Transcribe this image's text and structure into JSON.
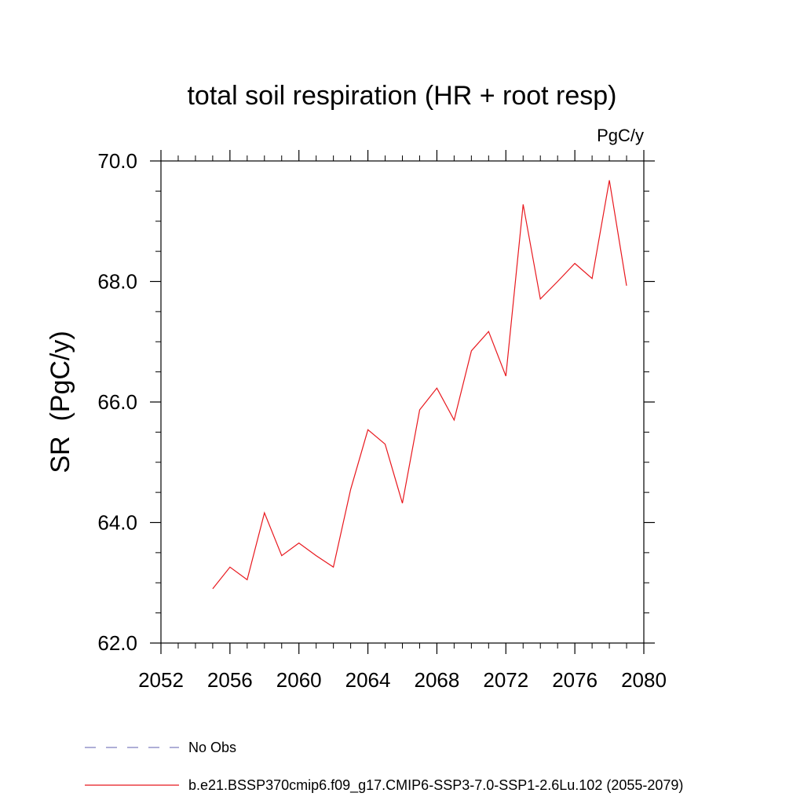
{
  "chart_data": {
    "type": "line",
    "title": "total soil respiration (HR + root resp)",
    "units_label": "PgC/y",
    "ylabel": "SR  (PgC/y)",
    "xlabel": "",
    "xlim": [
      2052,
      2080
    ],
    "ylim": [
      62.0,
      70.0
    ],
    "x_ticks": [
      2052,
      2056,
      2060,
      2064,
      2068,
      2072,
      2076,
      2080
    ],
    "x_tick_labels": [
      "2052",
      "2056",
      "2060",
      "2064",
      "2068",
      "2072",
      "2076",
      "2080"
    ],
    "y_ticks": [
      62.0,
      64.0,
      66.0,
      68.0,
      70.0
    ],
    "y_tick_labels": [
      "62.0",
      "64.0",
      "66.0",
      "68.0",
      "70.0"
    ],
    "grid": false,
    "legend_position": "bottom",
    "legend": [
      {
        "label": "No Obs",
        "style": "dashed",
        "color": "#7f7fbf"
      },
      {
        "label": "b.e21.BSSP370cmip6.f09_g17.CMIP6-SSP3-7.0-SSP1-2.6Lu.102 (2055-2079)",
        "style": "solid",
        "color": "#e8181e"
      }
    ],
    "series": [
      {
        "name": "b.e21.BSSP370cmip6.f09_g17.CMIP6-SSP3-7.0-SSP1-2.6Lu.102 (2055-2079)",
        "color": "#e8181e",
        "x": [
          2055,
          2056,
          2057,
          2058,
          2059,
          2060,
          2061,
          2062,
          2063,
          2064,
          2065,
          2066,
          2067,
          2068,
          2069,
          2070,
          2071,
          2072,
          2073,
          2074,
          2075,
          2076,
          2077,
          2078,
          2079
        ],
        "y": [
          62.9,
          63.26,
          63.05,
          64.16,
          63.45,
          63.66,
          63.45,
          63.26,
          64.55,
          65.54,
          65.3,
          64.32,
          65.87,
          66.23,
          65.7,
          66.85,
          67.17,
          66.43,
          69.28,
          67.71,
          68.0,
          68.3,
          68.05,
          69.68,
          67.93
        ]
      }
    ]
  }
}
